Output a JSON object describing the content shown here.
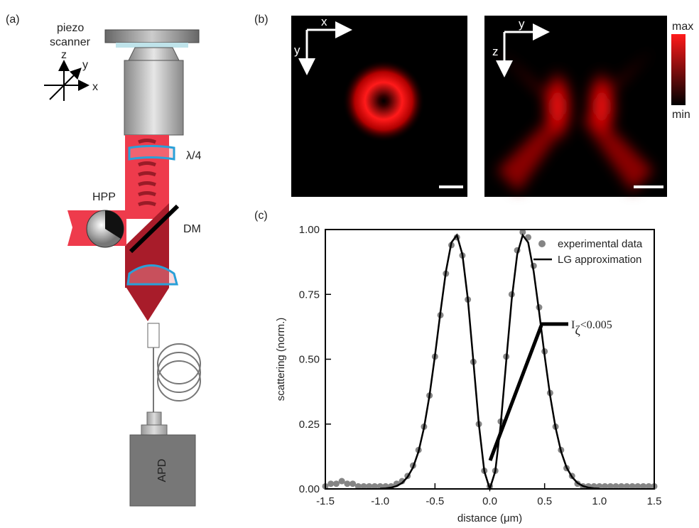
{
  "panels": {
    "a": "(a)",
    "b": "(b)",
    "c": "(c)"
  },
  "diagram": {
    "piezo": "piezo",
    "scanner": "scanner",
    "axis_z": "z",
    "axis_y": "y",
    "axis_x": "x",
    "waveplate": "λ/4",
    "hpp": "HPP",
    "dm": "DM",
    "apd": "APD"
  },
  "images": {
    "left_x": "x",
    "left_y": "y",
    "right_y": "y",
    "right_z": "z",
    "colorbar_max": "max",
    "colorbar_min": "min"
  },
  "chart_data": {
    "type": "line",
    "xlabel": "distance (μm)",
    "ylabel": "scattering (norm.)",
    "xlim": [
      -1.5,
      1.5
    ],
    "ylim": [
      0,
      1
    ],
    "xticks": [
      {
        "value": -1.5,
        "label": "-1.5"
      },
      {
        "value": -1,
        "label": "-1.0"
      },
      {
        "value": -0.5,
        "label": "-0.5"
      },
      {
        "value": 0,
        "label": "0.0"
      },
      {
        "value": 0.5,
        "label": "0.5"
      },
      {
        "value": 1,
        "label": "1.0"
      },
      {
        "value": 1.5,
        "label": "1.5"
      }
    ],
    "yticks": [
      {
        "value": 0,
        "label": "0.00"
      },
      {
        "value": 0.25,
        "label": "0.25"
      },
      {
        "value": 0.5,
        "label": "0.50"
      },
      {
        "value": 0.75,
        "label": "0.75"
      },
      {
        "value": 1,
        "label": "1.00"
      }
    ],
    "legend": "upper right",
    "annotation": {
      "base": "I",
      "subscript": "ζ",
      "text": "<0.005"
    },
    "series": [
      {
        "name": "experimental data",
        "color": "#858585",
        "style": "markers",
        "x": [
          -1.5,
          -1.45,
          -1.4,
          -1.35,
          -1.3,
          -1.25,
          -1.2,
          -1.15,
          -1.1,
          -1.05,
          -1.0,
          -0.95,
          -0.9,
          -0.85,
          -0.8,
          -0.75,
          -0.7,
          -0.65,
          -0.6,
          -0.55,
          -0.5,
          -0.45,
          -0.4,
          -0.35,
          -0.3,
          -0.25,
          -0.2,
          -0.15,
          -0.1,
          -0.05,
          0,
          0.05,
          0.1,
          0.15,
          0.2,
          0.25,
          0.3,
          0.35,
          0.4,
          0.45,
          0.5,
          0.55,
          0.6,
          0.65,
          0.7,
          0.75,
          0.8,
          0.85,
          0.9,
          0.95,
          1.0,
          1.05,
          1.1,
          1.15,
          1.2,
          1.25,
          1.3,
          1.35,
          1.4,
          1.45,
          1.5
        ],
        "values": [
          0.01,
          0.02,
          0.02,
          0.03,
          0.02,
          0.02,
          0.01,
          0.01,
          0.01,
          0.01,
          0.01,
          0.01,
          0.01,
          0.02,
          0.03,
          0.05,
          0.09,
          0.15,
          0.24,
          0.36,
          0.51,
          0.67,
          0.83,
          0.94,
          0.97,
          0.9,
          0.73,
          0.49,
          0.25,
          0.07,
          0.01,
          0.07,
          0.26,
          0.51,
          0.75,
          0.92,
          0.99,
          0.97,
          0.86,
          0.7,
          0.53,
          0.37,
          0.24,
          0.15,
          0.08,
          0.05,
          0.02,
          0.01,
          0.01,
          0.01,
          0.01,
          0.01,
          0.01,
          0.01,
          0.01,
          0.01,
          0.01,
          0.01,
          0.01,
          0.01,
          0.01
        ]
      },
      {
        "name": "LG approximation",
        "color": "#000000",
        "style": "line",
        "x": [
          -1.0,
          -0.95,
          -0.9,
          -0.85,
          -0.8,
          -0.75,
          -0.7,
          -0.65,
          -0.6,
          -0.55,
          -0.5,
          -0.45,
          -0.4,
          -0.35,
          -0.3,
          -0.25,
          -0.2,
          -0.15,
          -0.1,
          -0.05,
          0,
          0.05,
          0.1,
          0.15,
          0.2,
          0.25,
          0.3,
          0.35,
          0.4,
          0.45,
          0.5,
          0.55,
          0.6,
          0.65,
          0.7,
          0.75,
          0.8,
          0.85,
          0.9,
          0.95,
          1.0
        ],
        "values": [
          0.001,
          0.002,
          0.005,
          0.011,
          0.023,
          0.046,
          0.083,
          0.144,
          0.236,
          0.36,
          0.514,
          0.682,
          0.839,
          0.95,
          0.978,
          0.904,
          0.731,
          0.493,
          0.25,
          0.068,
          0,
          0.068,
          0.25,
          0.493,
          0.731,
          0.904,
          0.978,
          0.95,
          0.839,
          0.682,
          0.514,
          0.36,
          0.236,
          0.144,
          0.083,
          0.046,
          0.023,
          0.011,
          0.005,
          0.002,
          0.001
        ]
      }
    ]
  }
}
